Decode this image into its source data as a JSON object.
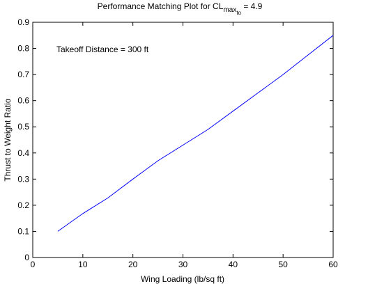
{
  "chart_data": {
    "type": "line",
    "title": {
      "prefix": "Performance Matching Plot for CL",
      "sub_max": "max",
      "sub_to": "to",
      "suffix": " = 4.9"
    },
    "xlabel": "Wing Loading (lb/sq ft)",
    "ylabel": "Thrust to Weight Ratio",
    "xlim": [
      0,
      60
    ],
    "ylim": [
      0,
      0.9
    ],
    "xticks": [
      "0",
      "10",
      "20",
      "30",
      "40",
      "50",
      "60"
    ],
    "yticks": [
      "0",
      "0.1",
      "0.2",
      "0.3",
      "0.4",
      "0.5",
      "0.6",
      "0.7",
      "0.8",
      "0.9"
    ],
    "grid": false,
    "annotation": "Takeoff Distance = 300 ft",
    "series": [
      {
        "color": "#0000ff",
        "x": [
          5,
          10,
          15,
          20,
          25,
          30,
          35,
          40,
          45,
          50,
          55,
          60
        ],
        "y": [
          0.1,
          0.168,
          0.228,
          0.3,
          0.37,
          0.43,
          0.49,
          0.56,
          0.63,
          0.7,
          0.775,
          0.85
        ]
      }
    ]
  }
}
